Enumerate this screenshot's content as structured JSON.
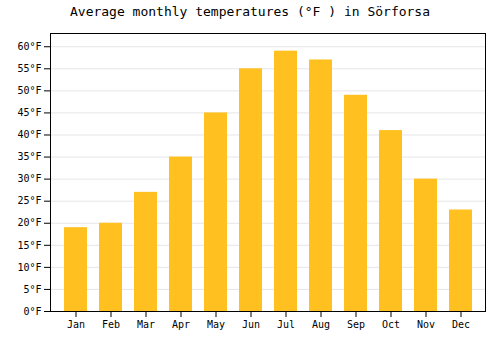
{
  "chart_data": {
    "type": "bar",
    "title": "Average monthly temperatures (°F ) in Sörforsa",
    "categories": [
      "Jan",
      "Feb",
      "Mar",
      "Apr",
      "May",
      "Jun",
      "Jul",
      "Aug",
      "Sep",
      "Oct",
      "Nov",
      "Dec"
    ],
    "values": [
      19,
      20,
      27,
      35,
      45,
      55,
      59,
      57,
      49,
      41,
      30,
      23
    ],
    "color": "#FFC020",
    "ylim": [
      0,
      63
    ],
    "yticks": [
      {
        "value": 0,
        "label": "0°F"
      },
      {
        "value": 5,
        "label": "5°F"
      },
      {
        "value": 10,
        "label": "10°F"
      },
      {
        "value": 15,
        "label": "15°F"
      },
      {
        "value": 20,
        "label": "20°F"
      },
      {
        "value": 25,
        "label": "25°F"
      },
      {
        "value": 30,
        "label": "30°F"
      },
      {
        "value": 35,
        "label": "35°F"
      },
      {
        "value": 40,
        "label": "40°F"
      },
      {
        "value": 45,
        "label": "45°F"
      },
      {
        "value": 50,
        "label": "50°F"
      },
      {
        "value": 55,
        "label": "55°F"
      },
      {
        "value": 60,
        "label": "60°F"
      }
    ],
    "grid": true
  }
}
